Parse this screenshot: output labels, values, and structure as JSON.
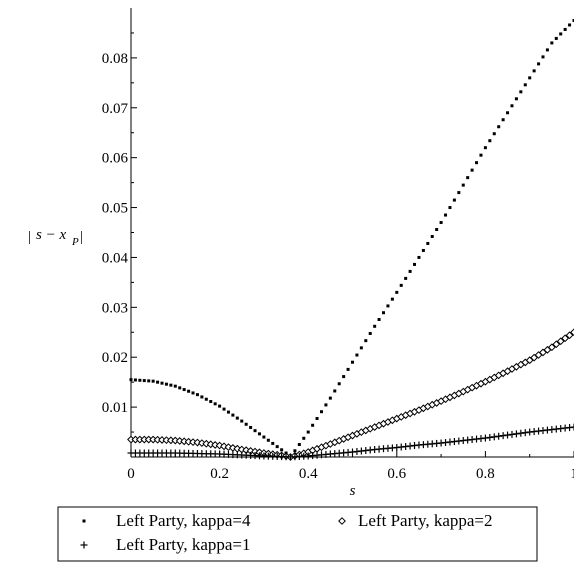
{
  "chart_data": {
    "type": "scatter",
    "xlabel": "s",
    "ylabel": "|s − x_P|",
    "ylabel_parts": {
      "bar_left": "|",
      "main": "s − x",
      "sub": "P",
      "bar_right": "|"
    },
    "xlim": [
      0,
      1
    ],
    "ylim": [
      0,
      0.09
    ],
    "x_ticks": [
      0,
      0.2,
      0.4,
      0.6,
      0.8,
      1
    ],
    "x_tick_labels": [
      "0",
      "0.2",
      "0.4",
      "0.6",
      "0.8",
      "1"
    ],
    "y_ticks": [
      0.01,
      0.02,
      0.03,
      0.04,
      0.05,
      0.06,
      0.07,
      0.08
    ],
    "y_tick_labels": [
      "0.01",
      "0.02",
      "0.03",
      "0.04",
      "0.05",
      "0.06",
      "0.07",
      "0.08"
    ],
    "grid": false,
    "legend_position": "bottom",
    "series": [
      {
        "name": "Left Party, kappa=4",
        "marker": "point",
        "x": [
          0,
          0.05,
          0.1,
          0.15,
          0.2,
          0.25,
          0.3,
          0.35,
          0.36,
          0.4,
          0.45,
          0.5,
          0.55,
          0.6,
          0.65,
          0.7,
          0.75,
          0.8,
          0.85,
          0.9,
          0.95,
          1.0
        ],
        "y": [
          0.0155,
          0.0152,
          0.0142,
          0.0125,
          0.0102,
          0.0072,
          0.004,
          0.0008,
          0.0,
          0.005,
          0.0118,
          0.019,
          0.0262,
          0.033,
          0.04,
          0.047,
          0.0545,
          0.062,
          0.069,
          0.076,
          0.083,
          0.0875
        ]
      },
      {
        "name": "Left Party, kappa=2",
        "marker": "diamond",
        "x": [
          0,
          0.05,
          0.1,
          0.15,
          0.2,
          0.25,
          0.3,
          0.35,
          0.36,
          0.4,
          0.45,
          0.5,
          0.55,
          0.6,
          0.65,
          0.7,
          0.75,
          0.8,
          0.85,
          0.9,
          0.95,
          1.0
        ],
        "y": [
          0.0035,
          0.0035,
          0.0033,
          0.0029,
          0.0023,
          0.0015,
          0.0008,
          0.0002,
          0.0,
          0.001,
          0.0026,
          0.0043,
          0.006,
          0.0077,
          0.0094,
          0.0112,
          0.0131,
          0.0151,
          0.0172,
          0.0194,
          0.022,
          0.025
        ]
      },
      {
        "name": "Left Party, kappa=1",
        "marker": "plus",
        "x": [
          0,
          0.05,
          0.1,
          0.15,
          0.2,
          0.25,
          0.3,
          0.35,
          0.36,
          0.4,
          0.45,
          0.5,
          0.55,
          0.6,
          0.65,
          0.7,
          0.75,
          0.8,
          0.85,
          0.9,
          0.95,
          1.0
        ],
        "y": [
          0.0008,
          0.0008,
          0.0008,
          0.0007,
          0.0006,
          0.0004,
          0.0002,
          5e-05,
          0.0,
          0.0002,
          0.0006,
          0.001,
          0.0015,
          0.0019,
          0.0024,
          0.0028,
          0.0033,
          0.0038,
          0.0044,
          0.005,
          0.0055,
          0.006
        ]
      }
    ]
  }
}
